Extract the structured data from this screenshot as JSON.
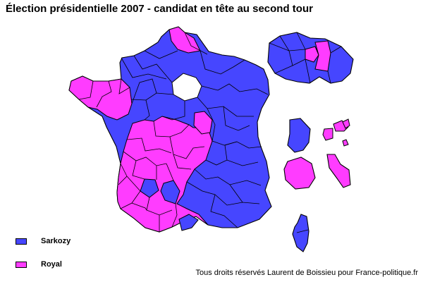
{
  "title": "Élection présidentielle 2007 - candidat en tête au second tour",
  "legend": {
    "items": [
      {
        "label": "Sarkozy",
        "color": "#4646ff"
      },
      {
        "label": "Royal",
        "color": "#ff3cff"
      }
    ]
  },
  "map": {
    "border_color": "#000000",
    "background_color": "#ffffff"
  },
  "footer": "Tous droits réservés Laurent de Boissieu pour France-politique.fr"
}
